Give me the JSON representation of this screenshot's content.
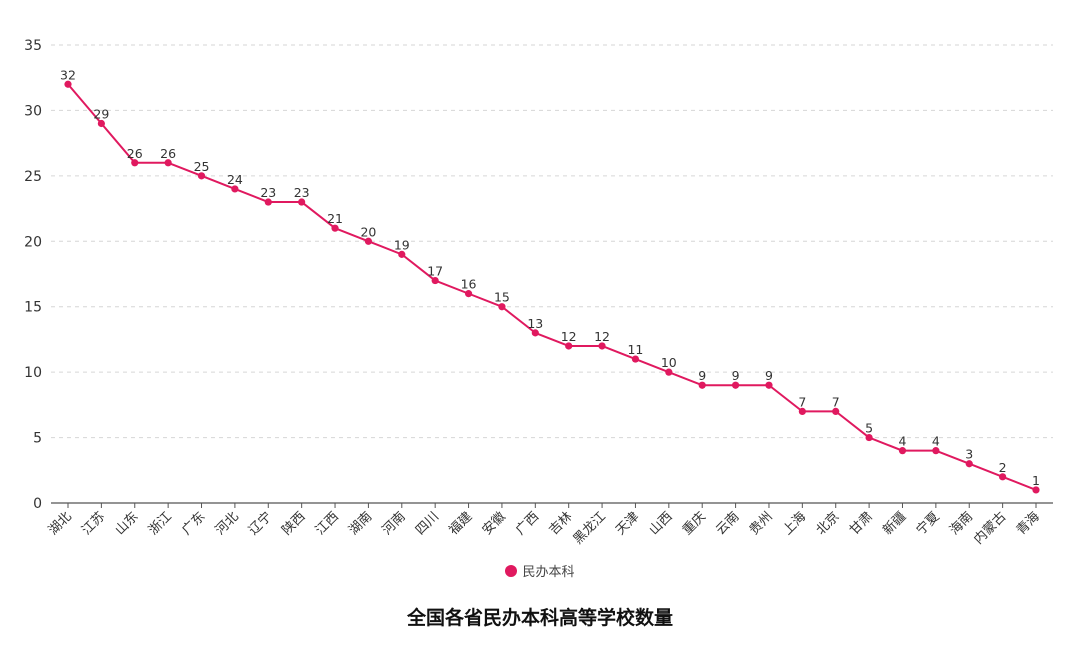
{
  "chart_data": {
    "type": "line",
    "title": "全国各省民办本科高等学校数量",
    "xlabel": "",
    "ylabel": "",
    "ylim": [
      0,
      35
    ],
    "yticks": [
      0,
      5,
      10,
      15,
      20,
      25,
      30,
      35
    ],
    "grid": true,
    "legend_position": "bottom",
    "categories": [
      "湖北",
      "江苏",
      "山东",
      "浙江",
      "广东",
      "河北",
      "辽宁",
      "陕西",
      "江西",
      "湖南",
      "河南",
      "四川",
      "福建",
      "安徽",
      "广西",
      "吉林",
      "黑龙江",
      "天津",
      "山西",
      "重庆",
      "云南",
      "贵州",
      "上海",
      "北京",
      "甘肃",
      "新疆",
      "宁夏",
      "海南",
      "内蒙古",
      "青海"
    ],
    "series": [
      {
        "name": "民办本科",
        "color": "#e0195f",
        "values": [
          32,
          29,
          26,
          26,
          25,
          24,
          23,
          23,
          21,
          20,
          19,
          17,
          16,
          15,
          13,
          12,
          12,
          11,
          10,
          9,
          9,
          9,
          7,
          7,
          5,
          4,
          4,
          3,
          2,
          1
        ]
      }
    ]
  },
  "legend": {
    "label": "民办本科"
  },
  "title": "全国各省民办本科高等学校数量"
}
